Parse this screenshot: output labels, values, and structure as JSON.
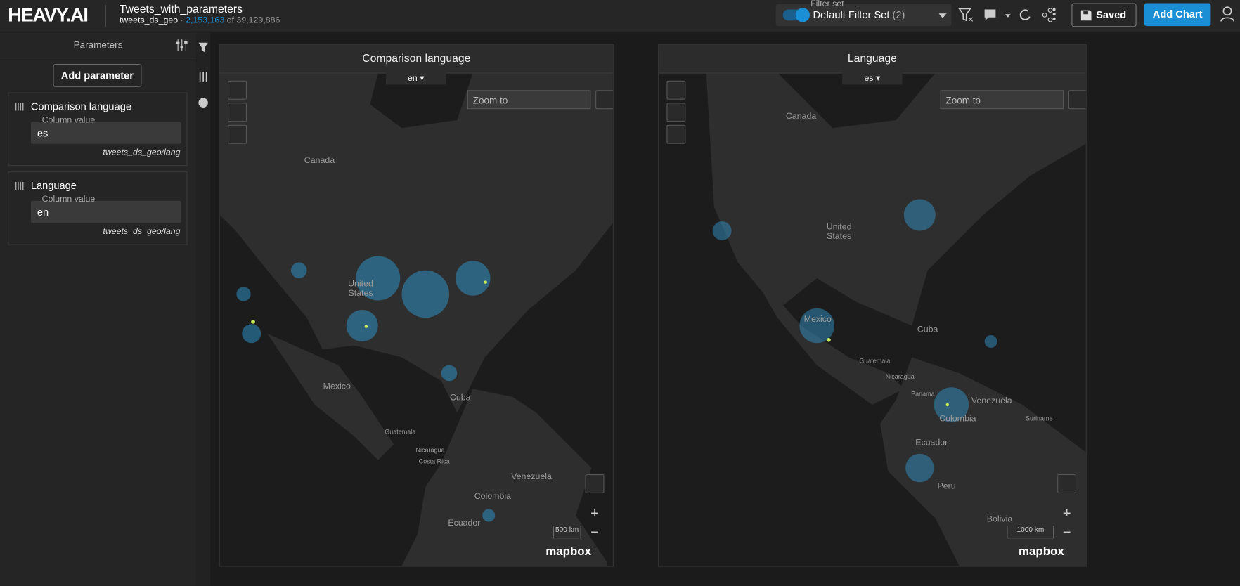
{
  "header": {
    "logo": "HEAVY.AI",
    "title": "Tweets_with_parameters",
    "table": "tweets_ds_geo",
    "separator": "·",
    "filtered_count": "2,153,163",
    "total_text": "of 39,129,886"
  },
  "filter_set": {
    "label": "Filter set",
    "name": "Default Filter Set",
    "count": "(2)"
  },
  "buttons": {
    "saved": "Saved",
    "add_chart": "Add Chart"
  },
  "sidebar": {
    "title": "Parameters",
    "add_button": "Add parameter",
    "parameters": [
      {
        "name": "Comparison language",
        "field_label": "Column value",
        "value": "es",
        "source": "tweets_ds_geo/lang"
      },
      {
        "name": "Language",
        "field_label": "Column value",
        "value": "en",
        "source": "tweets_ds_geo/lang"
      }
    ]
  },
  "charts": [
    {
      "title": "Comparison language",
      "selector": "en",
      "search_placeholder": "Zoom to",
      "scale": "500 km",
      "attribution": "mapbox",
      "map_labels": [
        "Canada",
        "United States",
        "Mexico",
        "Cuba",
        "Guatemala",
        "Nicaragua",
        "Costa Rica",
        "Venezuela",
        "Colombia",
        "Ecuador"
      ]
    },
    {
      "title": "Language",
      "selector": "es",
      "search_placeholder": "Zoom to",
      "scale": "1000 km",
      "attribution": "mapbox",
      "map_labels": [
        "Canada",
        "United States",
        "Mexico",
        "Cuba",
        "Guatemala",
        "Nicaragua",
        "Panama",
        "Venezuela",
        "Colombia",
        "Suriname",
        "Ecuador",
        "Peru",
        "Bolivia"
      ]
    }
  ]
}
